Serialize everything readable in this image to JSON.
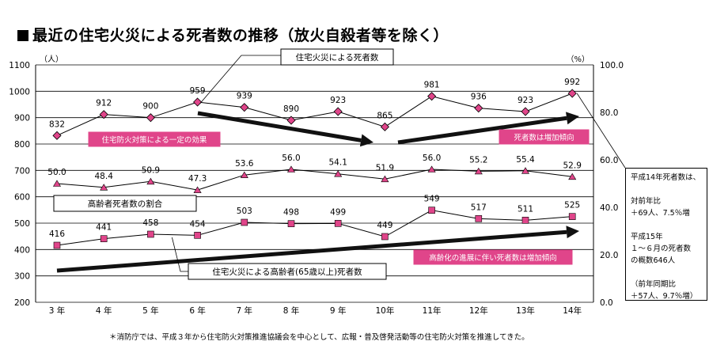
{
  "title": "最近の住宅火災による死者数の推移（放火自殺者等を除く）",
  "footnote": "＊消防庁では、平成３年から住宅防火対策推進協議会を中心として、広報・普及啓発活動等の住宅防火対策を推進してきた。",
  "note_box": {
    "lines": [
      "平成14年死者数は、",
      "",
      "対前年比",
      "＋69人、7.5％増",
      "",
      "平成15年",
      "１～６月の死者数",
      "の概数646人",
      "",
      "（前年同期比",
      "＋57人、9.7％増）"
    ]
  },
  "colors": {
    "marker": "#e0458a",
    "label_fill": "#e0458a",
    "arrow": "#111111",
    "grid": "#000000"
  },
  "chart_data": {
    "type": "line",
    "categories": [
      "3 年",
      "4 年",
      "5 年",
      "6 年",
      "7 年",
      "8 年",
      "9 年",
      "10年",
      "11年",
      "12年",
      "13年",
      "14年"
    ],
    "left_axis": {
      "unit": "（人）",
      "min": 200,
      "max": 1100,
      "ticks": [
        200,
        300,
        400,
        500,
        600,
        700,
        800,
        900,
        1000,
        1100
      ]
    },
    "right_axis": {
      "unit": "（%）",
      "min": 0,
      "max": 100,
      "ticks": [
        "0.0",
        "20.0",
        "40.0",
        "60.0",
        "80.0",
        "100.0"
      ]
    },
    "series": [
      {
        "name": "住宅火災による死者数",
        "axis": "left",
        "marker": "diamond",
        "values": [
          832,
          912,
          900,
          959,
          939,
          890,
          923,
          865,
          981,
          936,
          923,
          992
        ]
      },
      {
        "name": "高齢者死者数の割合",
        "axis": "right",
        "marker": "triangle",
        "values": [
          50.0,
          48.4,
          50.9,
          47.3,
          53.6,
          56.0,
          54.1,
          51.9,
          56.0,
          55.2,
          55.4,
          52.9
        ],
        "labels": [
          "50.0",
          "48.4",
          "50.9",
          "47.3",
          "53.6",
          "56.0",
          "54.1",
          "51.9",
          "56.0",
          "55.2",
          "55.4",
          "52.9"
        ]
      },
      {
        "name": "住宅火災による高齢者(65歳以上)死者数",
        "axis": "left",
        "marker": "square",
        "values": [
          416,
          441,
          458,
          454,
          503,
          498,
          499,
          449,
          549,
          517,
          511,
          525
        ]
      }
    ],
    "annotations": {
      "trend1": "住宅防火対策による一定の効果",
      "trend2": "死者数は増加傾向",
      "trend3": "高齢化の進展に伴い死者数は増加傾向"
    }
  }
}
